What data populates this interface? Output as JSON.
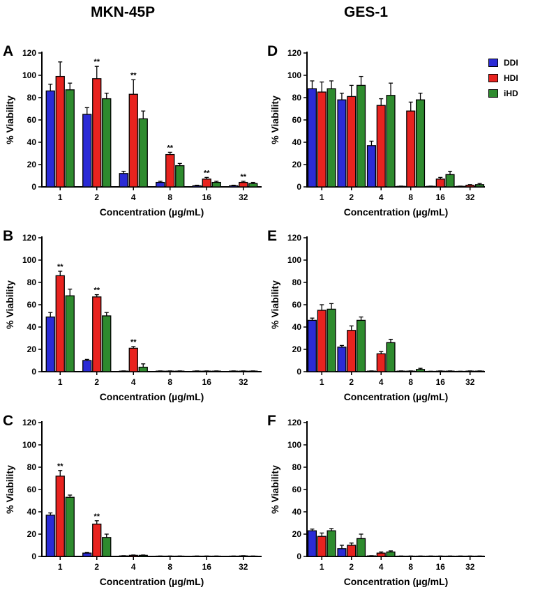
{
  "column_titles": {
    "left": "MKN-45P",
    "right": "GES-1"
  },
  "colors": {
    "DDI": "#2b2bd6",
    "HDI": "#e8231f",
    "iHD": "#2e8b2e"
  },
  "legend": [
    "DDI",
    "HDI",
    "iHD"
  ],
  "chart_data": [
    {
      "panel": "A",
      "type": "bar",
      "categories": [
        "1",
        "2",
        "4",
        "8",
        "16",
        "32"
      ],
      "series": [
        {
          "name": "DDI",
          "values": [
            86,
            65,
            12,
            4,
            1,
            1
          ],
          "errors": [
            6,
            6,
            2,
            1,
            0.5,
            0.5
          ]
        },
        {
          "name": "HDI",
          "values": [
            99,
            97,
            83,
            29,
            7,
            4
          ],
          "errors": [
            13,
            11,
            13,
            2,
            1.5,
            1
          ]
        },
        {
          "name": "iHD",
          "values": [
            87,
            79,
            61,
            19,
            4,
            3
          ],
          "errors": [
            6,
            5,
            7,
            2,
            1,
            1
          ]
        }
      ],
      "significance": [
        [
          "",
          "",
          ""
        ],
        [
          "",
          "**",
          ""
        ],
        [
          "",
          "**",
          ""
        ],
        [
          "",
          "**",
          ""
        ],
        [
          "",
          "**",
          ""
        ],
        [
          "",
          "**",
          ""
        ]
      ],
      "ylabel": "% Viability",
      "xlabel": "Concentration (µg/mL)",
      "ylim": [
        0,
        120
      ],
      "yticks": [
        "0",
        "20",
        "40",
        "60",
        "80",
        "100",
        "120"
      ]
    },
    {
      "panel": "B",
      "type": "bar",
      "categories": [
        "1",
        "2",
        "4",
        "8",
        "16",
        "32"
      ],
      "series": [
        {
          "name": "DDI",
          "values": [
            49,
            10,
            0.5,
            0.5,
            0.5,
            0.5
          ],
          "errors": [
            4,
            1,
            0.2,
            0.2,
            0.2,
            0.2
          ]
        },
        {
          "name": "HDI",
          "values": [
            86,
            67,
            21,
            0.5,
            0.5,
            0.5
          ],
          "errors": [
            4,
            2,
            1.5,
            0.2,
            0.2,
            0.2
          ]
        },
        {
          "name": "iHD",
          "values": [
            68,
            50,
            4,
            0.5,
            0.5,
            0.5
          ],
          "errors": [
            6,
            3,
            3,
            0.2,
            0.2,
            0.2
          ]
        }
      ],
      "significance": [
        [
          "",
          "**",
          ""
        ],
        [
          "",
          "**",
          ""
        ],
        [
          "",
          "**",
          ""
        ],
        [
          "",
          "",
          ""
        ],
        [
          "",
          "",
          ""
        ],
        [
          "",
          "",
          ""
        ]
      ],
      "ylabel": "% Viability",
      "xlabel": "Concentration (µg/mL)",
      "ylim": [
        0,
        120
      ],
      "yticks": [
        "0",
        "20",
        "40",
        "60",
        "80",
        "100",
        "120"
      ]
    },
    {
      "panel": "C",
      "type": "bar",
      "categories": [
        "1",
        "2",
        "4",
        "8",
        "16",
        "32"
      ],
      "series": [
        {
          "name": "DDI",
          "values": [
            37,
            3,
            0.5,
            0.3,
            0.3,
            0.3
          ],
          "errors": [
            2,
            0.5,
            0.2,
            0.1,
            0.1,
            0.1
          ]
        },
        {
          "name": "HDI",
          "values": [
            72,
            29,
            1,
            0.3,
            0.3,
            0.5
          ],
          "errors": [
            5,
            3,
            0.3,
            0.1,
            0.1,
            0.2
          ]
        },
        {
          "name": "iHD",
          "values": [
            53,
            17,
            1,
            0.3,
            0.3,
            0.3
          ],
          "errors": [
            2,
            3,
            0.3,
            0.1,
            0.1,
            0.1
          ]
        }
      ],
      "significance": [
        [
          "",
          "**",
          ""
        ],
        [
          "",
          "**",
          ""
        ],
        [
          "",
          "",
          ""
        ],
        [
          "",
          "",
          ""
        ],
        [
          "",
          "",
          ""
        ],
        [
          "",
          "",
          ""
        ]
      ],
      "ylabel": "% Viability",
      "xlabel": "Concentration (µg/mL)",
      "ylim": [
        0,
        120
      ],
      "yticks": [
        "0",
        "20",
        "40",
        "60",
        "80",
        "100",
        "120"
      ]
    },
    {
      "panel": "D",
      "type": "bar",
      "categories": [
        "1",
        "2",
        "4",
        "8",
        "16",
        "32"
      ],
      "series": [
        {
          "name": "DDI",
          "values": [
            88,
            78,
            37,
            0.5,
            0.5,
            0.5
          ],
          "errors": [
            7,
            6,
            4,
            0.2,
            0.2,
            0.2
          ]
        },
        {
          "name": "HDI",
          "values": [
            85,
            81,
            73,
            68,
            7,
            1.5
          ],
          "errors": [
            9,
            10,
            6,
            8,
            1.5,
            0.5
          ]
        },
        {
          "name": "iHD",
          "values": [
            88,
            91,
            82,
            78,
            11,
            2
          ],
          "errors": [
            7,
            8,
            11,
            6,
            3,
            1
          ]
        }
      ],
      "significance": [
        [
          "",
          "",
          ""
        ],
        [
          "",
          "",
          ""
        ],
        [
          "",
          "",
          ""
        ],
        [
          "",
          "",
          ""
        ],
        [
          "",
          "",
          ""
        ],
        [
          "",
          "",
          ""
        ]
      ],
      "ylabel": "% Viability",
      "xlabel": "Concentration (µg/mL)",
      "ylim": [
        0,
        120
      ],
      "yticks": [
        "0",
        "20",
        "40",
        "60",
        "80",
        "100",
        "120"
      ]
    },
    {
      "panel": "E",
      "type": "bar",
      "categories": [
        "1",
        "2",
        "4",
        "8",
        "16",
        "32"
      ],
      "series": [
        {
          "name": "DDI",
          "values": [
            46,
            22,
            0.5,
            0.5,
            0.3,
            0.3
          ],
          "errors": [
            2,
            1.5,
            0.2,
            0.2,
            0.1,
            0.1
          ]
        },
        {
          "name": "HDI",
          "values": [
            55,
            37,
            16,
            0.5,
            0.5,
            0.5
          ],
          "errors": [
            5,
            4,
            2,
            0.2,
            0.2,
            0.2
          ]
        },
        {
          "name": "iHD",
          "values": [
            56,
            46,
            26,
            2,
            0.5,
            0.5
          ],
          "errors": [
            5,
            3,
            3,
            1,
            0.2,
            0.2
          ]
        }
      ],
      "significance": [
        [
          "",
          "",
          ""
        ],
        [
          "",
          "",
          ""
        ],
        [
          "",
          "",
          ""
        ],
        [
          "",
          "",
          ""
        ],
        [
          "",
          "",
          ""
        ],
        [
          "",
          "",
          ""
        ]
      ],
      "ylabel": "% Viability",
      "xlabel": "Concentration (µg/mL)",
      "ylim": [
        0,
        120
      ],
      "yticks": [
        "0",
        "20",
        "40",
        "60",
        "80",
        "100",
        "120"
      ]
    },
    {
      "panel": "F",
      "type": "bar",
      "categories": [
        "1",
        "2",
        "4",
        "8",
        "16",
        "32"
      ],
      "series": [
        {
          "name": "DDI",
          "values": [
            23,
            7,
            0.5,
            0.3,
            0.3,
            0.3
          ],
          "errors": [
            1.5,
            3,
            0.2,
            0.1,
            0.1,
            0.1
          ]
        },
        {
          "name": "HDI",
          "values": [
            18,
            10,
            3,
            0.3,
            0.3,
            0.3
          ],
          "errors": [
            3,
            2,
            1,
            0.1,
            0.1,
            0.1
          ]
        },
        {
          "name": "iHD",
          "values": [
            23,
            16,
            4,
            0.3,
            0.3,
            0.3
          ],
          "errors": [
            2,
            4,
            1,
            0.1,
            0.1,
            0.1
          ]
        }
      ],
      "significance": [
        [
          "",
          "",
          ""
        ],
        [
          "",
          "",
          ""
        ],
        [
          "",
          "",
          ""
        ],
        [
          "",
          "",
          ""
        ],
        [
          "",
          "",
          ""
        ],
        [
          "",
          "",
          ""
        ]
      ],
      "ylabel": "% Viability",
      "xlabel": "Concentration (µg/mL)",
      "ylim": [
        0,
        120
      ],
      "yticks": [
        "0",
        "20",
        "40",
        "60",
        "80",
        "100",
        "120"
      ]
    }
  ]
}
